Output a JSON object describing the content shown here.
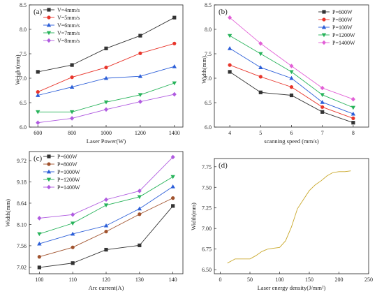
{
  "chart_data": [
    {
      "type": "line",
      "panel_label": "(a)",
      "x": [
        600,
        800,
        1000,
        1200,
        1400
      ],
      "xticks": [
        "600",
        "800",
        "1000",
        "1200",
        "1400"
      ],
      "xlim": [
        550,
        1450
      ],
      "ylim": [
        6.0,
        8.5
      ],
      "yticks": [
        "6.0",
        "6.5",
        "7.0",
        "7.5",
        "8.0",
        "8.5"
      ],
      "xlabel": "Laser Power(W)",
      "ylabel": "Weight(mm)",
      "legend_position": "top-left",
      "series": [
        {
          "name": "V=4mm/s",
          "color": "#333333",
          "marker": "square",
          "values": [
            7.13,
            7.27,
            7.61,
            7.87,
            8.24
          ]
        },
        {
          "name": "V=5mm/s",
          "color": "#e8352b",
          "marker": "circle",
          "values": [
            6.72,
            7.02,
            7.22,
            7.51,
            7.71
          ]
        },
        {
          "name": "V=6mm/s",
          "color": "#2b5ed8",
          "marker": "triangle-up",
          "values": [
            6.65,
            6.82,
            7.0,
            7.04,
            7.24
          ]
        },
        {
          "name": "V=7mm/s",
          "color": "#27b35a",
          "marker": "triangle-down",
          "values": [
            6.31,
            6.31,
            6.51,
            6.66,
            6.9
          ]
        },
        {
          "name": "V=8mm/s",
          "color": "#b05be0",
          "marker": "diamond",
          "values": [
            6.09,
            6.18,
            6.36,
            6.52,
            6.67
          ]
        }
      ]
    },
    {
      "type": "line",
      "panel_label": "(b)",
      "x": [
        4,
        5,
        6,
        7,
        8
      ],
      "xticks": [
        "4",
        "5",
        "6",
        "7",
        "8"
      ],
      "xlim": [
        3.5,
        8.5
      ],
      "ylim": [
        6.0,
        8.5
      ],
      "yticks": [
        "6.0",
        "6.5",
        "7.0",
        "7.5",
        "8.0",
        "8.5"
      ],
      "xlabel": "scanning speed (mm/s)",
      "ylabel": "Width(mm)",
      "legend_position": "top-right",
      "series": [
        {
          "name": "P=600W",
          "color": "#333333",
          "marker": "square",
          "values": [
            7.13,
            6.71,
            6.65,
            6.31,
            6.09
          ]
        },
        {
          "name": "P=800W",
          "color": "#e8352b",
          "marker": "circle",
          "values": [
            7.27,
            7.03,
            6.82,
            6.41,
            6.18
          ]
        },
        {
          "name": "P=100W",
          "color": "#2b5ed8",
          "marker": "triangle-up",
          "values": [
            7.61,
            7.22,
            7.0,
            6.51,
            6.27
          ]
        },
        {
          "name": "P=1200W",
          "color": "#27b35a",
          "marker": "triangle-down",
          "values": [
            7.87,
            7.5,
            7.13,
            6.66,
            6.4
          ]
        },
        {
          "name": "P=1400W",
          "color": "#e25fd6",
          "marker": "diamond",
          "values": [
            8.24,
            7.71,
            7.25,
            6.8,
            6.57
          ]
        }
      ]
    },
    {
      "type": "line",
      "panel_label": "(c)",
      "x": [
        100,
        110,
        120,
        130,
        140
      ],
      "xticks": [
        "100",
        "110",
        "120",
        "130",
        "140"
      ],
      "xlim": [
        97,
        143
      ],
      "ylim": [
        6.85,
        9.95
      ],
      "ytick_values": [
        7.02,
        7.56,
        8.1,
        8.64,
        9.18,
        9.72
      ],
      "yticks": [
        "7.02",
        "7.56",
        "8.10",
        "8.64",
        "9.18",
        "9.72"
      ],
      "xlabel": "Arc current(A)",
      "ylabel": "Width(mm)",
      "legend_position": "top-left",
      "series": [
        {
          "name": "P=600W",
          "color": "#333333",
          "marker": "square",
          "values": [
            7.01,
            7.12,
            7.46,
            7.57,
            8.57
          ]
        },
        {
          "name": "P=800W",
          "color": "#a0522d",
          "marker": "circle",
          "values": [
            7.28,
            7.52,
            7.92,
            8.36,
            8.77
          ]
        },
        {
          "name": "P=1000W",
          "color": "#2b5ed8",
          "marker": "triangle-up",
          "values": [
            7.61,
            7.86,
            8.07,
            8.5,
            9.06
          ]
        },
        {
          "name": "P=1200W",
          "color": "#27b35a",
          "marker": "triangle-down",
          "values": [
            7.86,
            8.13,
            8.59,
            8.8,
            9.31
          ]
        },
        {
          "name": "P=1400W",
          "color": "#b05be0",
          "marker": "diamond",
          "values": [
            8.26,
            8.35,
            8.73,
            8.95,
            9.81
          ]
        }
      ]
    },
    {
      "type": "line",
      "panel_label": "(d)",
      "xlim": [
        -10,
        250
      ],
      "xtick_values": [
        0,
        50,
        100,
        150,
        200,
        250
      ],
      "xticks": [
        "0",
        "50",
        "100",
        "150",
        "200",
        "250"
      ],
      "ylim": [
        6.45,
        7.85
      ],
      "ytick_values": [
        6.5,
        6.75,
        7.0,
        7.25,
        7.5,
        7.75
      ],
      "yticks": [
        "6.50",
        "6.75",
        "7.00",
        "7.25",
        "7.50",
        "7.75"
      ],
      "xlabel": "Laser energy density(J/mm²)",
      "ylabel": "Width(mm)",
      "series": [
        {
          "color": "#c9a82b",
          "marker": "none",
          "x": [
            12,
            20,
            25,
            35,
            42,
            50,
            60,
            70,
            80,
            90,
            100,
            110,
            120,
            130,
            140,
            150,
            160,
            170,
            180,
            190,
            200,
            210,
            220
          ],
          "values": [
            6.58,
            6.61,
            6.63,
            6.63,
            6.63,
            6.63,
            6.67,
            6.72,
            6.75,
            6.76,
            6.77,
            6.85,
            7.02,
            7.24,
            7.35,
            7.46,
            7.53,
            7.58,
            7.64,
            7.68,
            7.69,
            7.69,
            7.7
          ]
        }
      ]
    }
  ]
}
